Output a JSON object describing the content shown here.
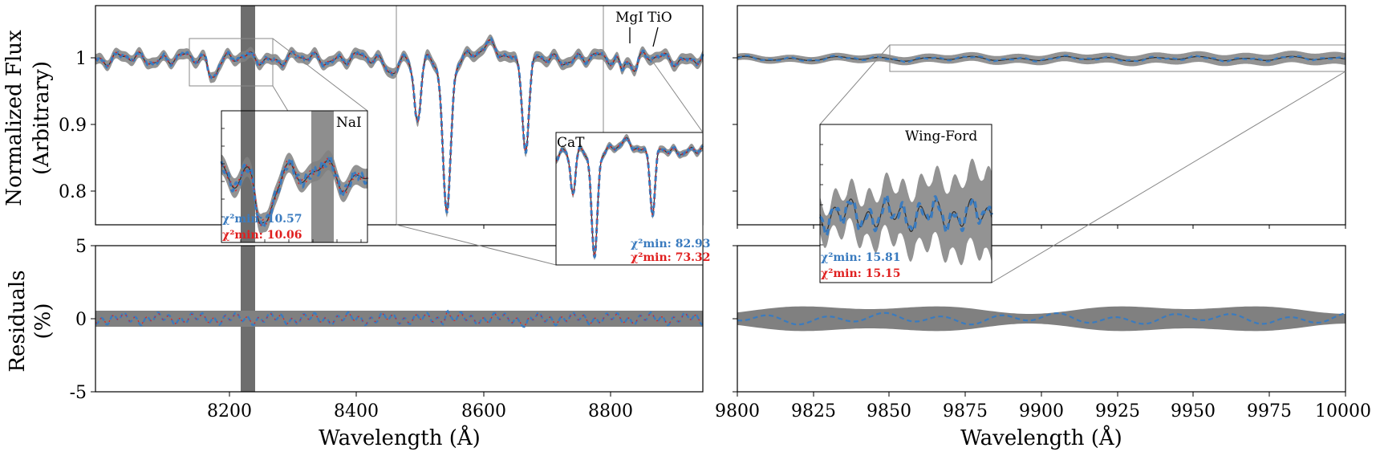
{
  "colors": {
    "band": "#808080",
    "observed": "#333333",
    "fit_blue": "#3a7bbf",
    "fit_red": "#e02020",
    "mask": "#6e6e6e"
  },
  "chart_data": [
    {
      "id": "flux-left",
      "type": "line",
      "ylabel": [
        "Normalized Flux",
        "(Arbitrary)"
      ],
      "xlim": [
        8010,
        8930
      ],
      "ylim": [
        0.75,
        1.08
      ],
      "yticks": [
        0.8,
        0.9,
        1.0
      ],
      "mask_region": [
        8227,
        8248
      ],
      "series": [
        {
          "style": "observed",
          "points": []
        },
        {
          "style": "fit-blue",
          "points": []
        },
        {
          "style": "fit-red",
          "points": []
        }
      ],
      "absorption_lines": [
        {
          "center": 8498,
          "depth": 0.1,
          "width": 5
        },
        {
          "center": 8542,
          "depth": 0.23,
          "width": 6
        },
        {
          "center": 8662,
          "depth": 0.14,
          "width": 5
        }
      ],
      "features": [
        {
          "label": "MgI",
          "x": 8807
        },
        {
          "label": "TiO",
          "x": 8860
        }
      ],
      "zoom_boxes": [
        {
          "x": [
            8150,
            8280
          ],
          "y": [
            0.975,
            1.03
          ]
        },
        {
          "x": [
            8463,
            8765
          ],
          "y": [
            0.75,
            1.08
          ]
        },
        {
          "x": [
            8765,
            8930
          ],
          "y": [
            0.75,
            1.08
          ]
        }
      ]
    },
    {
      "id": "flux-right",
      "type": "line",
      "xlim": [
        9800,
        10000
      ],
      "ylim": [
        0.75,
        1.08
      ],
      "yticks": [
        0.8,
        0.9,
        1.0
      ],
      "series": [
        {
          "style": "observed"
        },
        {
          "style": "fit-blue"
        }
      ],
      "zoom_boxes": [
        {
          "x": [
            9850,
            10000
          ],
          "y": [
            0.98,
            1.02
          ]
        }
      ]
    },
    {
      "id": "resid-left",
      "type": "line",
      "xlabel": "Wavelength (Å)",
      "ylabel": [
        "Residuals",
        "(%)"
      ],
      "xlim": [
        8010,
        8930
      ],
      "ylim": [
        -5,
        5
      ],
      "xticks": [
        8200,
        8400,
        8600,
        8800
      ],
      "yticks": [
        -5,
        0,
        5
      ],
      "band_halfwidth": 0.5,
      "mask_region": [
        8227,
        8248
      ]
    },
    {
      "id": "resid-right",
      "type": "line",
      "xlabel": "Wavelength (Å)",
      "xlim": [
        9800,
        10000
      ],
      "ylim": [
        -5,
        5
      ],
      "xticks": [
        9800,
        9825,
        9850,
        9875,
        9900,
        9925,
        9950,
        9975,
        10000
      ],
      "yticks": [
        -5,
        0,
        5
      ],
      "band_halfwidth": 0.6
    }
  ],
  "insets": [
    {
      "id": "inset-nai",
      "label": "NaI",
      "source_x": [
        8150,
        8280
      ],
      "chi2": [
        {
          "label": "χ²min",
          "value": ": 10.57",
          "color": "#3a7bbf"
        },
        {
          "label": "χ²min",
          "value": ": 10.06",
          "color": "#e02020"
        }
      ]
    },
    {
      "id": "inset-cat",
      "label": "CaT",
      "source_x": [
        8463,
        8765
      ],
      "chi2": [
        {
          "label": "χ²min",
          "value": ": 82.93",
          "color": "#3a7bbf"
        },
        {
          "label": "χ²min",
          "value": ": 73.32",
          "color": "#e02020"
        }
      ]
    },
    {
      "id": "inset-wingford",
      "label": "Wing-Ford",
      "source_x": [
        9850,
        10000
      ],
      "chi2": [
        {
          "label": "χ²min",
          "value": ": 15.81",
          "color": "#3a7bbf"
        },
        {
          "label": "χ²min",
          "value": ": 15.15",
          "color": "#e02020"
        }
      ]
    }
  ]
}
